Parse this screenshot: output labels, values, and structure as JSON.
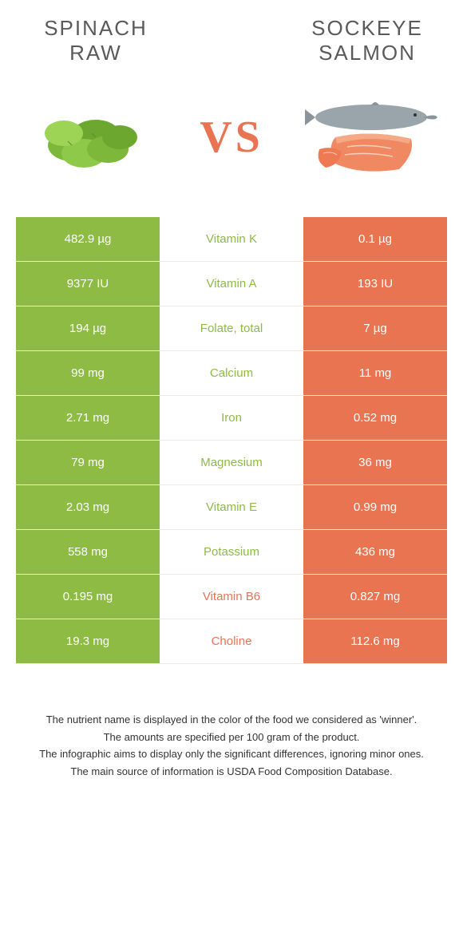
{
  "food_left": {
    "name": "Spinach Raw",
    "color": "#8dbb44"
  },
  "food_right": {
    "name": "Sockeye Salmon",
    "color": "#e97452"
  },
  "vs_label": "VS",
  "colors": {
    "left_bg": "#8dbb44",
    "right_bg": "#e97452",
    "neutral_bg": "#ffffff",
    "value_text": "#ffffff",
    "border": "#ececec"
  },
  "rows": [
    {
      "nutrient": "Vitamin K",
      "left": "482.9 µg",
      "right": "0.1 µg",
      "winner": "left"
    },
    {
      "nutrient": "Vitamin A",
      "left": "9377 IU",
      "right": "193 IU",
      "winner": "left"
    },
    {
      "nutrient": "Folate, total",
      "left": "194 µg",
      "right": "7 µg",
      "winner": "left"
    },
    {
      "nutrient": "Calcium",
      "left": "99 mg",
      "right": "11 mg",
      "winner": "left"
    },
    {
      "nutrient": "Iron",
      "left": "2.71 mg",
      "right": "0.52 mg",
      "winner": "left"
    },
    {
      "nutrient": "Magnesium",
      "left": "79 mg",
      "right": "36 mg",
      "winner": "left"
    },
    {
      "nutrient": "Vitamin E",
      "left": "2.03 mg",
      "right": "0.99 mg",
      "winner": "left"
    },
    {
      "nutrient": "Potassium",
      "left": "558 mg",
      "right": "436 mg",
      "winner": "left"
    },
    {
      "nutrient": "Vitamin B6",
      "left": "0.195 mg",
      "right": "0.827 mg",
      "winner": "right"
    },
    {
      "nutrient": "Choline",
      "left": "19.3 mg",
      "right": "112.6 mg",
      "winner": "right"
    }
  ],
  "footer": [
    "The nutrient name is displayed in the color of the food we considered as 'winner'.",
    "The amounts are specified per 100 gram of the product.",
    "The infographic aims to display only the significant differences, ignoring minor ones.",
    "The main source of information is USDA Food Composition Database."
  ]
}
